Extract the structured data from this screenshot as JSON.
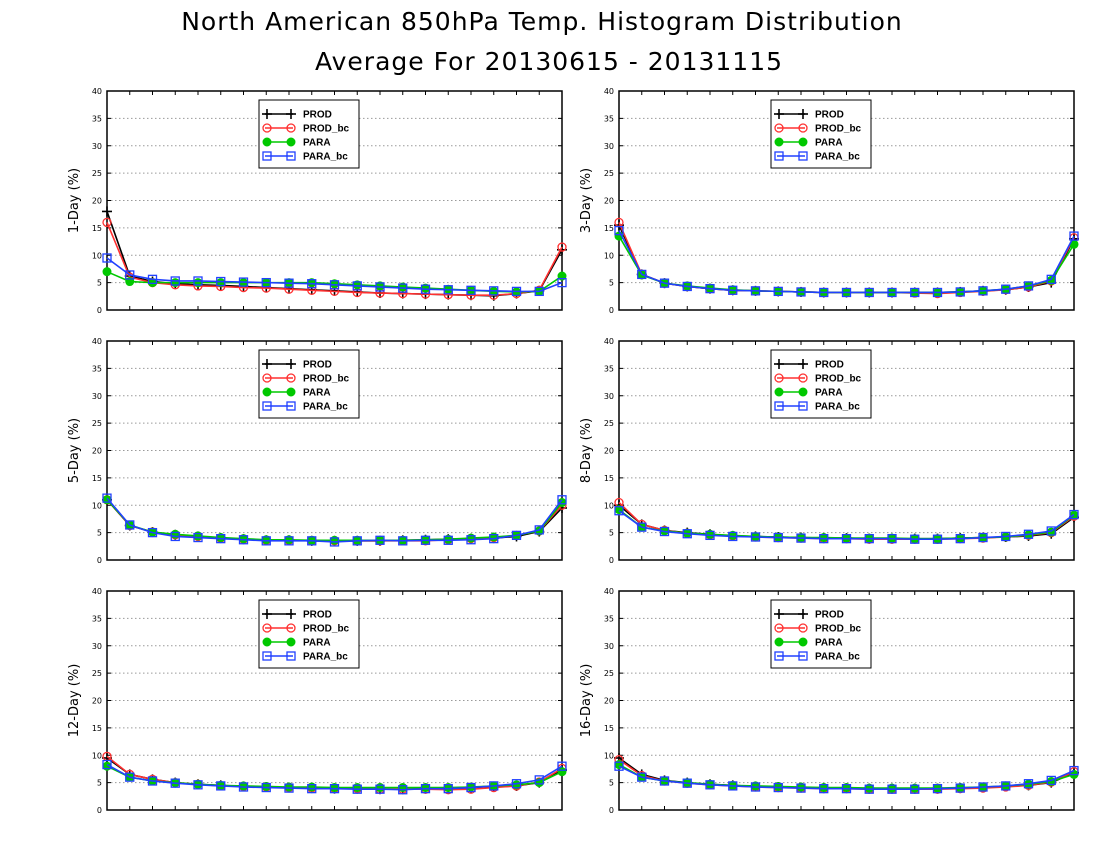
{
  "title": "North American 850hPa Temp. Histogram Distribution",
  "subtitle": "Average For 20130615 - 20131115",
  "colors": {
    "PROD": "#000000",
    "PROD_bc": "#ff3030",
    "PARA": "#00c800",
    "PARA_bc": "#2040ff"
  },
  "chart_data": [
    {
      "type": "line",
      "ylabel": "1-Day (%)",
      "ylim": [
        0,
        40
      ],
      "yticks": [
        0,
        5,
        10,
        15,
        20,
        25,
        30,
        35,
        40
      ],
      "grid": true,
      "legend_placement": "top-center",
      "x": [
        1,
        2,
        3,
        4,
        5,
        6,
        7,
        8,
        9,
        10,
        11,
        12,
        13,
        14,
        15,
        16,
        17,
        18,
        19,
        20,
        21
      ],
      "series": [
        {
          "name": "PROD",
          "marker": "plus",
          "values": [
            18,
            6.2,
            5.2,
            4.8,
            4.6,
            4.5,
            4.3,
            4.1,
            3.9,
            3.7,
            3.5,
            3.3,
            3.1,
            3.0,
            2.9,
            2.8,
            2.7,
            2.6,
            3.0,
            3.5,
            11.0
          ]
        },
        {
          "name": "PROD_bc",
          "marker": "open-circle",
          "values": [
            16,
            6.0,
            5.0,
            4.6,
            4.4,
            4.3,
            4.1,
            4.0,
            3.8,
            3.6,
            3.4,
            3.2,
            3.1,
            3.0,
            2.9,
            2.8,
            2.7,
            2.7,
            3.0,
            3.6,
            11.5
          ]
        },
        {
          "name": "PARA",
          "marker": "filled-circle",
          "values": [
            7,
            5.2,
            5.0,
            5.0,
            5.0,
            5.0,
            5.0,
            5.0,
            5.0,
            5.0,
            4.8,
            4.6,
            4.4,
            4.2,
            4.0,
            3.8,
            3.6,
            3.4,
            3.3,
            3.4,
            6.2
          ]
        },
        {
          "name": "PARA_bc",
          "marker": "open-square",
          "values": [
            9.5,
            6.4,
            5.6,
            5.3,
            5.3,
            5.2,
            5.1,
            5.0,
            4.9,
            4.8,
            4.6,
            4.4,
            4.2,
            4.0,
            3.8,
            3.7,
            3.6,
            3.5,
            3.4,
            3.4,
            5.0
          ]
        }
      ]
    },
    {
      "type": "line",
      "ylabel": "3-Day (%)",
      "ylim": [
        0,
        40
      ],
      "yticks": [
        0,
        5,
        10,
        15,
        20,
        25,
        30,
        35,
        40
      ],
      "grid": true,
      "legend_placement": "top-center",
      "x": [
        1,
        2,
        3,
        4,
        5,
        6,
        7,
        8,
        9,
        10,
        11,
        12,
        13,
        14,
        15,
        16,
        17,
        18,
        19,
        20,
        21
      ],
      "series": [
        {
          "name": "PROD",
          "marker": "plus",
          "values": [
            15.5,
            6.5,
            4.9,
            4.3,
            3.9,
            3.6,
            3.5,
            3.4,
            3.3,
            3.2,
            3.2,
            3.2,
            3.2,
            3.2,
            3.2,
            3.3,
            3.5,
            3.7,
            4.2,
            5.0,
            13.0
          ]
        },
        {
          "name": "PROD_bc",
          "marker": "open-circle",
          "values": [
            16,
            6.5,
            4.9,
            4.3,
            3.9,
            3.6,
            3.5,
            3.4,
            3.3,
            3.2,
            3.2,
            3.2,
            3.2,
            3.1,
            3.0,
            3.2,
            3.4,
            3.7,
            4.2,
            5.3,
            13.2
          ]
        },
        {
          "name": "PARA",
          "marker": "filled-circle",
          "values": [
            13.5,
            6.4,
            4.9,
            4.4,
            4.0,
            3.7,
            3.5,
            3.4,
            3.3,
            3.2,
            3.2,
            3.2,
            3.2,
            3.2,
            3.2,
            3.3,
            3.5,
            3.8,
            4.4,
            5.4,
            12.0
          ]
        },
        {
          "name": "PARA_bc",
          "marker": "open-square",
          "values": [
            14.5,
            6.5,
            4.9,
            4.3,
            3.9,
            3.6,
            3.5,
            3.4,
            3.3,
            3.2,
            3.2,
            3.2,
            3.2,
            3.2,
            3.2,
            3.3,
            3.5,
            3.8,
            4.4,
            5.6,
            13.5
          ]
        }
      ]
    },
    {
      "type": "line",
      "ylabel": "5-Day (%)",
      "ylim": [
        0,
        40
      ],
      "yticks": [
        0,
        5,
        10,
        15,
        20,
        25,
        30,
        35,
        40
      ],
      "grid": true,
      "legend_placement": "top-center",
      "x": [
        1,
        2,
        3,
        4,
        5,
        6,
        7,
        8,
        9,
        10,
        11,
        12,
        13,
        14,
        15,
        16,
        17,
        18,
        19,
        20,
        21
      ],
      "series": [
        {
          "name": "PROD",
          "marker": "plus",
          "values": [
            11,
            6.3,
            5.1,
            4.6,
            4.3,
            4.0,
            3.8,
            3.6,
            3.6,
            3.5,
            3.5,
            3.5,
            3.5,
            3.6,
            3.7,
            3.8,
            3.9,
            4.0,
            4.3,
            5.2,
            9.5
          ]
        },
        {
          "name": "PROD_bc",
          "marker": "open-circle",
          "values": [
            11,
            6.3,
            5.1,
            4.6,
            4.3,
            4.0,
            3.8,
            3.6,
            3.6,
            3.5,
            3.5,
            3.5,
            3.5,
            3.5,
            3.5,
            3.7,
            3.9,
            4.1,
            4.5,
            5.3,
            10.0
          ]
        },
        {
          "name": "PARA",
          "marker": "filled-circle",
          "values": [
            11,
            6.4,
            5.1,
            4.7,
            4.4,
            4.1,
            3.9,
            3.7,
            3.7,
            3.6,
            3.6,
            3.6,
            3.6,
            3.6,
            3.7,
            3.8,
            4.0,
            4.2,
            4.5,
            5.3,
            10.5
          ]
        },
        {
          "name": "PARA_bc",
          "marker": "open-square",
          "values": [
            11.3,
            6.4,
            5.0,
            4.3,
            4.1,
            3.9,
            3.7,
            3.5,
            3.5,
            3.5,
            3.3,
            3.5,
            3.6,
            3.5,
            3.6,
            3.6,
            3.7,
            3.9,
            4.5,
            5.5,
            11.0
          ]
        }
      ]
    },
    {
      "type": "line",
      "ylabel": "8-Day (%)",
      "ylim": [
        0,
        40
      ],
      "yticks": [
        0,
        5,
        10,
        15,
        20,
        25,
        30,
        35,
        40
      ],
      "grid": true,
      "legend_placement": "top-center",
      "x": [
        1,
        2,
        3,
        4,
        5,
        6,
        7,
        8,
        9,
        10,
        11,
        12,
        13,
        14,
        15,
        16,
        17,
        18,
        19,
        20,
        21
      ],
      "series": [
        {
          "name": "PROD",
          "marker": "plus",
          "values": [
            10,
            6.5,
            5.4,
            5.0,
            4.7,
            4.4,
            4.3,
            4.2,
            4.1,
            4.0,
            4.0,
            3.9,
            3.9,
            3.9,
            3.9,
            4.0,
            4.1,
            4.2,
            4.4,
            4.8,
            7.8
          ]
        },
        {
          "name": "PROD_bc",
          "marker": "open-circle",
          "values": [
            10.5,
            6.5,
            5.4,
            4.9,
            4.6,
            4.4,
            4.2,
            4.1,
            4.0,
            3.9,
            3.9,
            3.8,
            3.8,
            3.8,
            3.8,
            3.9,
            4.0,
            4.2,
            4.5,
            5.0,
            8.0
          ]
        },
        {
          "name": "PARA",
          "marker": "filled-circle",
          "values": [
            9.2,
            6.0,
            5.3,
            4.9,
            4.7,
            4.5,
            4.3,
            4.2,
            4.1,
            4.1,
            4.0,
            4.0,
            4.0,
            3.9,
            3.9,
            4.0,
            4.1,
            4.2,
            4.6,
            5.1,
            8.2
          ]
        },
        {
          "name": "PARA_bc",
          "marker": "open-square",
          "values": [
            9.0,
            6.0,
            5.2,
            4.8,
            4.5,
            4.3,
            4.2,
            4.1,
            4.0,
            3.9,
            3.9,
            3.9,
            3.9,
            3.8,
            3.8,
            3.9,
            4.1,
            4.3,
            4.7,
            5.3,
            8.3
          ]
        }
      ]
    },
    {
      "type": "line",
      "ylabel": "12-Day (%)",
      "ylim": [
        0,
        40
      ],
      "yticks": [
        0,
        5,
        10,
        15,
        20,
        25,
        30,
        35,
        40
      ],
      "grid": true,
      "legend_placement": "top-center",
      "x": [
        1,
        2,
        3,
        4,
        5,
        6,
        7,
        8,
        9,
        10,
        11,
        12,
        13,
        14,
        15,
        16,
        17,
        18,
        19,
        20,
        21
      ],
      "series": [
        {
          "name": "PROD",
          "marker": "plus",
          "values": [
            9.5,
            6.5,
            5.6,
            5.0,
            4.7,
            4.5,
            4.3,
            4.2,
            4.1,
            4.0,
            3.9,
            3.9,
            3.8,
            3.8,
            3.9,
            3.9,
            4.0,
            4.2,
            4.4,
            5.0,
            7.3
          ]
        },
        {
          "name": "PROD_bc",
          "marker": "open-circle",
          "values": [
            9.8,
            6.5,
            5.6,
            5.0,
            4.7,
            4.4,
            4.3,
            4.2,
            4.1,
            4.0,
            3.9,
            3.9,
            3.8,
            3.8,
            3.8,
            3.7,
            3.8,
            4.1,
            4.4,
            5.1,
            7.6
          ]
        },
        {
          "name": "PARA",
          "marker": "filled-circle",
          "values": [
            8.0,
            6.0,
            5.3,
            5.0,
            4.7,
            4.5,
            4.4,
            4.3,
            4.2,
            4.2,
            4.1,
            4.1,
            4.1,
            4.1,
            4.1,
            4.1,
            4.2,
            4.4,
            4.6,
            5.0,
            7.0
          ]
        },
        {
          "name": "PARA_bc",
          "marker": "open-square",
          "values": [
            8.3,
            6.0,
            5.3,
            4.9,
            4.6,
            4.4,
            4.2,
            4.1,
            4.0,
            3.9,
            3.9,
            3.8,
            3.8,
            3.7,
            3.9,
            3.9,
            4.1,
            4.4,
            4.8,
            5.5,
            8.0
          ]
        }
      ]
    },
    {
      "type": "line",
      "ylabel": "16-Day (%)",
      "ylim": [
        0,
        40
      ],
      "yticks": [
        0,
        5,
        10,
        15,
        20,
        25,
        30,
        35,
        40
      ],
      "grid": true,
      "legend_placement": "top-center",
      "x": [
        1,
        2,
        3,
        4,
        5,
        6,
        7,
        8,
        9,
        10,
        11,
        12,
        13,
        14,
        15,
        16,
        17,
        18,
        19,
        20,
        21
      ],
      "series": [
        {
          "name": "PROD",
          "marker": "plus",
          "values": [
            9.5,
            6.5,
            5.4,
            5.0,
            4.7,
            4.5,
            4.3,
            4.2,
            4.1,
            4.0,
            4.0,
            3.9,
            3.9,
            3.9,
            3.9,
            4.0,
            4.1,
            4.3,
            4.5,
            5.0,
            6.8
          ]
        },
        {
          "name": "PROD_bc",
          "marker": "open-circle",
          "values": [
            9.2,
            6.3,
            5.3,
            4.9,
            4.6,
            4.4,
            4.2,
            4.1,
            4.0,
            3.9,
            3.9,
            3.8,
            3.8,
            3.8,
            3.8,
            3.9,
            4.0,
            4.2,
            4.5,
            5.1,
            7.0
          ]
        },
        {
          "name": "PARA",
          "marker": "filled-circle",
          "values": [
            8.3,
            6.0,
            5.3,
            5.0,
            4.7,
            4.5,
            4.4,
            4.3,
            4.2,
            4.1,
            4.1,
            4.0,
            4.0,
            4.0,
            4.0,
            4.1,
            4.2,
            4.4,
            4.7,
            5.2,
            6.5
          ]
        },
        {
          "name": "PARA_bc",
          "marker": "open-square",
          "values": [
            8.0,
            6.0,
            5.3,
            4.9,
            4.6,
            4.4,
            4.2,
            4.1,
            4.0,
            3.9,
            3.9,
            3.8,
            3.8,
            3.8,
            3.9,
            4.0,
            4.2,
            4.4,
            4.8,
            5.4,
            7.2
          ]
        }
      ]
    }
  ]
}
